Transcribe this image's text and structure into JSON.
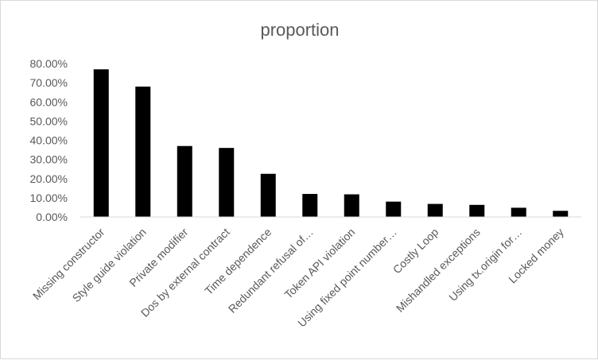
{
  "chart_data": {
    "type": "bar",
    "title": "proportion",
    "xlabel": "",
    "ylabel": "",
    "ylim": [
      0,
      0.8
    ],
    "yticks": [
      0,
      0.1,
      0.2,
      0.3,
      0.4,
      0.5,
      0.6,
      0.7,
      0.8
    ],
    "ytick_labels": [
      "0.00%",
      "10.00%",
      "20.00%",
      "30.00%",
      "40.00%",
      "50.00%",
      "60.00%",
      "70.00%",
      "80.00%"
    ],
    "grid": false,
    "legend": "none",
    "bar_color": "#000000",
    "categories": [
      "Missing constructor",
      "Style guide violation",
      "Private modifier",
      "Dos by external contract",
      "Time dependence",
      "Redundant refusal of…",
      "Token API violation",
      "Using fixed point number…",
      "Costly Loop",
      "Mishandled exceptions",
      "Using tx.origin for…",
      "Locked money"
    ],
    "values": [
      0.77,
      0.68,
      0.37,
      0.36,
      0.225,
      0.12,
      0.118,
      0.08,
      0.068,
      0.063,
      0.048,
      0.032
    ]
  }
}
